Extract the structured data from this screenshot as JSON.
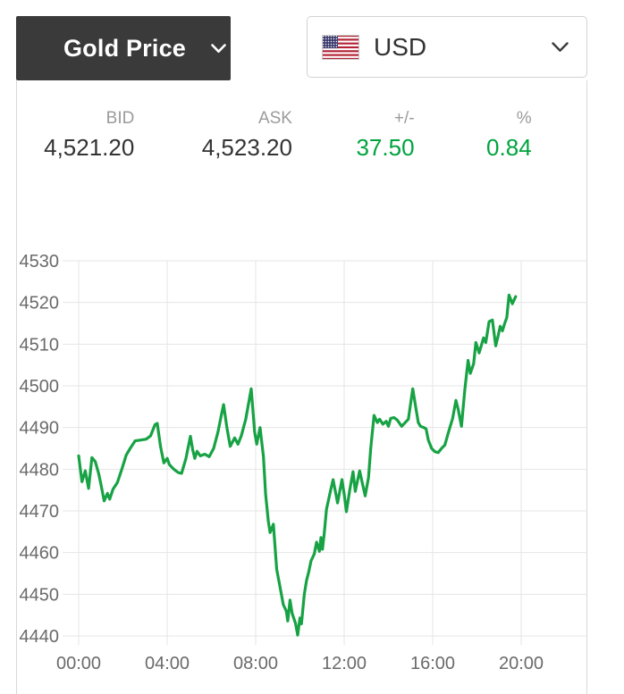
{
  "header": {
    "instrument_dropdown": {
      "label": "Gold Price"
    },
    "currency_dropdown": {
      "label": "USD",
      "flag_icon": "us-flag"
    }
  },
  "price_table": {
    "columns": [
      {
        "label": "BID",
        "value": "4,521.20",
        "value_color": "#333333"
      },
      {
        "label": "ASK",
        "value": "4,523.20",
        "value_color": "#333333"
      },
      {
        "label": "+/-",
        "value": "37.50",
        "value_color": "#00a33e"
      },
      {
        "label": "%",
        "value": "0.84",
        "value_color": "#00a33e"
      }
    ]
  },
  "colors": {
    "header_dark": "#3a3a3a",
    "positive_green": "#00a33e",
    "line_green": "#17a244",
    "grid_gray": "#e4e4e4",
    "border_gray": "#d8d8d8"
  },
  "chart_data": {
    "type": "line",
    "title": "",
    "xlabel": "",
    "ylabel": "",
    "x_ticks": [
      "00:00",
      "04:00",
      "08:00",
      "12:00",
      "16:00",
      "20:00"
    ],
    "x_tick_hours": [
      0,
      4,
      8,
      12,
      16,
      20
    ],
    "y_ticks": [
      4440,
      4450,
      4460,
      4470,
      4480,
      4490,
      4500,
      4510,
      4520,
      4530
    ],
    "ylim": [
      4440,
      4530
    ],
    "grid": true,
    "legend": "none",
    "line_color": "#17a244",
    "series": [
      {
        "name": "gold-price-usd-intraday",
        "points": [
          [
            0,
            4483.2
          ],
          [
            0.15,
            4477
          ],
          [
            0.3,
            4479.6
          ],
          [
            0.45,
            4475.4
          ],
          [
            0.6,
            4482.8
          ],
          [
            0.75,
            4481.8
          ],
          [
            0.9,
            4479
          ],
          [
            1,
            4476.5
          ],
          [
            1.15,
            4472.4
          ],
          [
            1.3,
            4474.2
          ],
          [
            1.4,
            4472.8
          ],
          [
            1.55,
            4475.2
          ],
          [
            1.75,
            4476.8
          ],
          [
            1.95,
            4480
          ],
          [
            2.15,
            4483.4
          ],
          [
            2.35,
            4485.2
          ],
          [
            2.55,
            4486.8
          ],
          [
            2.8,
            4487
          ],
          [
            3.05,
            4487.2
          ],
          [
            3.25,
            4488
          ],
          [
            3.45,
            4490.7
          ],
          [
            3.55,
            4491
          ],
          [
            3.7,
            4485.4
          ],
          [
            3.85,
            4481.5
          ],
          [
            4,
            4482.6
          ],
          [
            4.1,
            4481.1
          ],
          [
            4.3,
            4480
          ],
          [
            4.5,
            4479.2
          ],
          [
            4.65,
            4479
          ],
          [
            4.85,
            4482.6
          ],
          [
            5.05,
            4487.9
          ],
          [
            5.15,
            4484.7
          ],
          [
            5.25,
            4482.6
          ],
          [
            5.35,
            4484.3
          ],
          [
            5.5,
            4483.2
          ],
          [
            5.7,
            4483.6
          ],
          [
            5.9,
            4483
          ],
          [
            6.1,
            4485
          ],
          [
            6.3,
            4489
          ],
          [
            6.45,
            4493
          ],
          [
            6.55,
            4495.5
          ],
          [
            6.7,
            4490
          ],
          [
            6.85,
            4485.5
          ],
          [
            7.05,
            4487.5
          ],
          [
            7.2,
            4486
          ],
          [
            7.35,
            4488
          ],
          [
            7.55,
            4492
          ],
          [
            7.8,
            4499.3
          ],
          [
            7.95,
            4489
          ],
          [
            8.05,
            4486
          ],
          [
            8.2,
            4490
          ],
          [
            8.35,
            4483
          ],
          [
            8.45,
            4474
          ],
          [
            8.57,
            4467.6
          ],
          [
            8.65,
            4464.8
          ],
          [
            8.8,
            4466.8
          ],
          [
            8.95,
            4456
          ],
          [
            9.1,
            4451.8
          ],
          [
            9.25,
            4447.5
          ],
          [
            9.38,
            4446
          ],
          [
            9.45,
            4443.6
          ],
          [
            9.55,
            4448.6
          ],
          [
            9.65,
            4445.4
          ],
          [
            9.8,
            4443
          ],
          [
            9.9,
            4440.2
          ],
          [
            10,
            4444.3
          ],
          [
            10.07,
            4442.9
          ],
          [
            10.2,
            4450
          ],
          [
            10.3,
            4453.3
          ],
          [
            10.4,
            4455.4
          ],
          [
            10.5,
            4458
          ],
          [
            10.65,
            4459.7
          ],
          [
            10.75,
            4462.5
          ],
          [
            10.88,
            4460.3
          ],
          [
            10.95,
            4463.6
          ],
          [
            11.02,
            4460.8
          ],
          [
            11.1,
            4464.6
          ],
          [
            11.2,
            4470.4
          ],
          [
            11.4,
            4475.3
          ],
          [
            11.5,
            4477.5
          ],
          [
            11.7,
            4471.9
          ],
          [
            11.9,
            4477.5
          ],
          [
            12,
            4474
          ],
          [
            12.1,
            4469.8
          ],
          [
            12.25,
            4475
          ],
          [
            12.4,
            4479.4
          ],
          [
            12.5,
            4474.7
          ],
          [
            12.7,
            4479.6
          ],
          [
            12.85,
            4476
          ],
          [
            12.95,
            4473.6
          ],
          [
            13.1,
            4478
          ],
          [
            13.2,
            4485
          ],
          [
            13.35,
            4492.9
          ],
          [
            13.5,
            4491.2
          ],
          [
            13.6,
            4492
          ],
          [
            13.75,
            4490.8
          ],
          [
            13.9,
            4491.5
          ],
          [
            14,
            4490.3
          ],
          [
            14.1,
            4492.2
          ],
          [
            14.25,
            4492.4
          ],
          [
            14.4,
            4491.8
          ],
          [
            14.6,
            4490.3
          ],
          [
            14.9,
            4492
          ],
          [
            15.1,
            4499.3
          ],
          [
            15.25,
            4494.4
          ],
          [
            15.35,
            4491.2
          ],
          [
            15.45,
            4490.3
          ],
          [
            15.6,
            4490
          ],
          [
            15.7,
            4489.7
          ],
          [
            15.8,
            4487
          ],
          [
            15.95,
            4485
          ],
          [
            16.1,
            4484.2
          ],
          [
            16.25,
            4484
          ],
          [
            16.4,
            4485
          ],
          [
            16.55,
            4485.8
          ],
          [
            16.7,
            4488.6
          ],
          [
            16.9,
            4492.2
          ],
          [
            17.05,
            4496.5
          ],
          [
            17.15,
            4494.4
          ],
          [
            17.3,
            4490.3
          ],
          [
            17.45,
            4499
          ],
          [
            17.6,
            4506.1
          ],
          [
            17.7,
            4503
          ],
          [
            17.85,
            4505.3
          ],
          [
            17.95,
            4510.4
          ],
          [
            18.1,
            4507.9
          ],
          [
            18.3,
            4511.5
          ],
          [
            18.4,
            4510.4
          ],
          [
            18.55,
            4515.4
          ],
          [
            18.7,
            4515.8
          ],
          [
            18.85,
            4509.6
          ],
          [
            18.95,
            4511.8
          ],
          [
            19.05,
            4514.3
          ],
          [
            19.15,
            4513.2
          ],
          [
            19.25,
            4514.9
          ],
          [
            19.35,
            4516.4
          ],
          [
            19.45,
            4521.8
          ],
          [
            19.6,
            4519.7
          ],
          [
            19.75,
            4521.4
          ]
        ]
      }
    ]
  }
}
